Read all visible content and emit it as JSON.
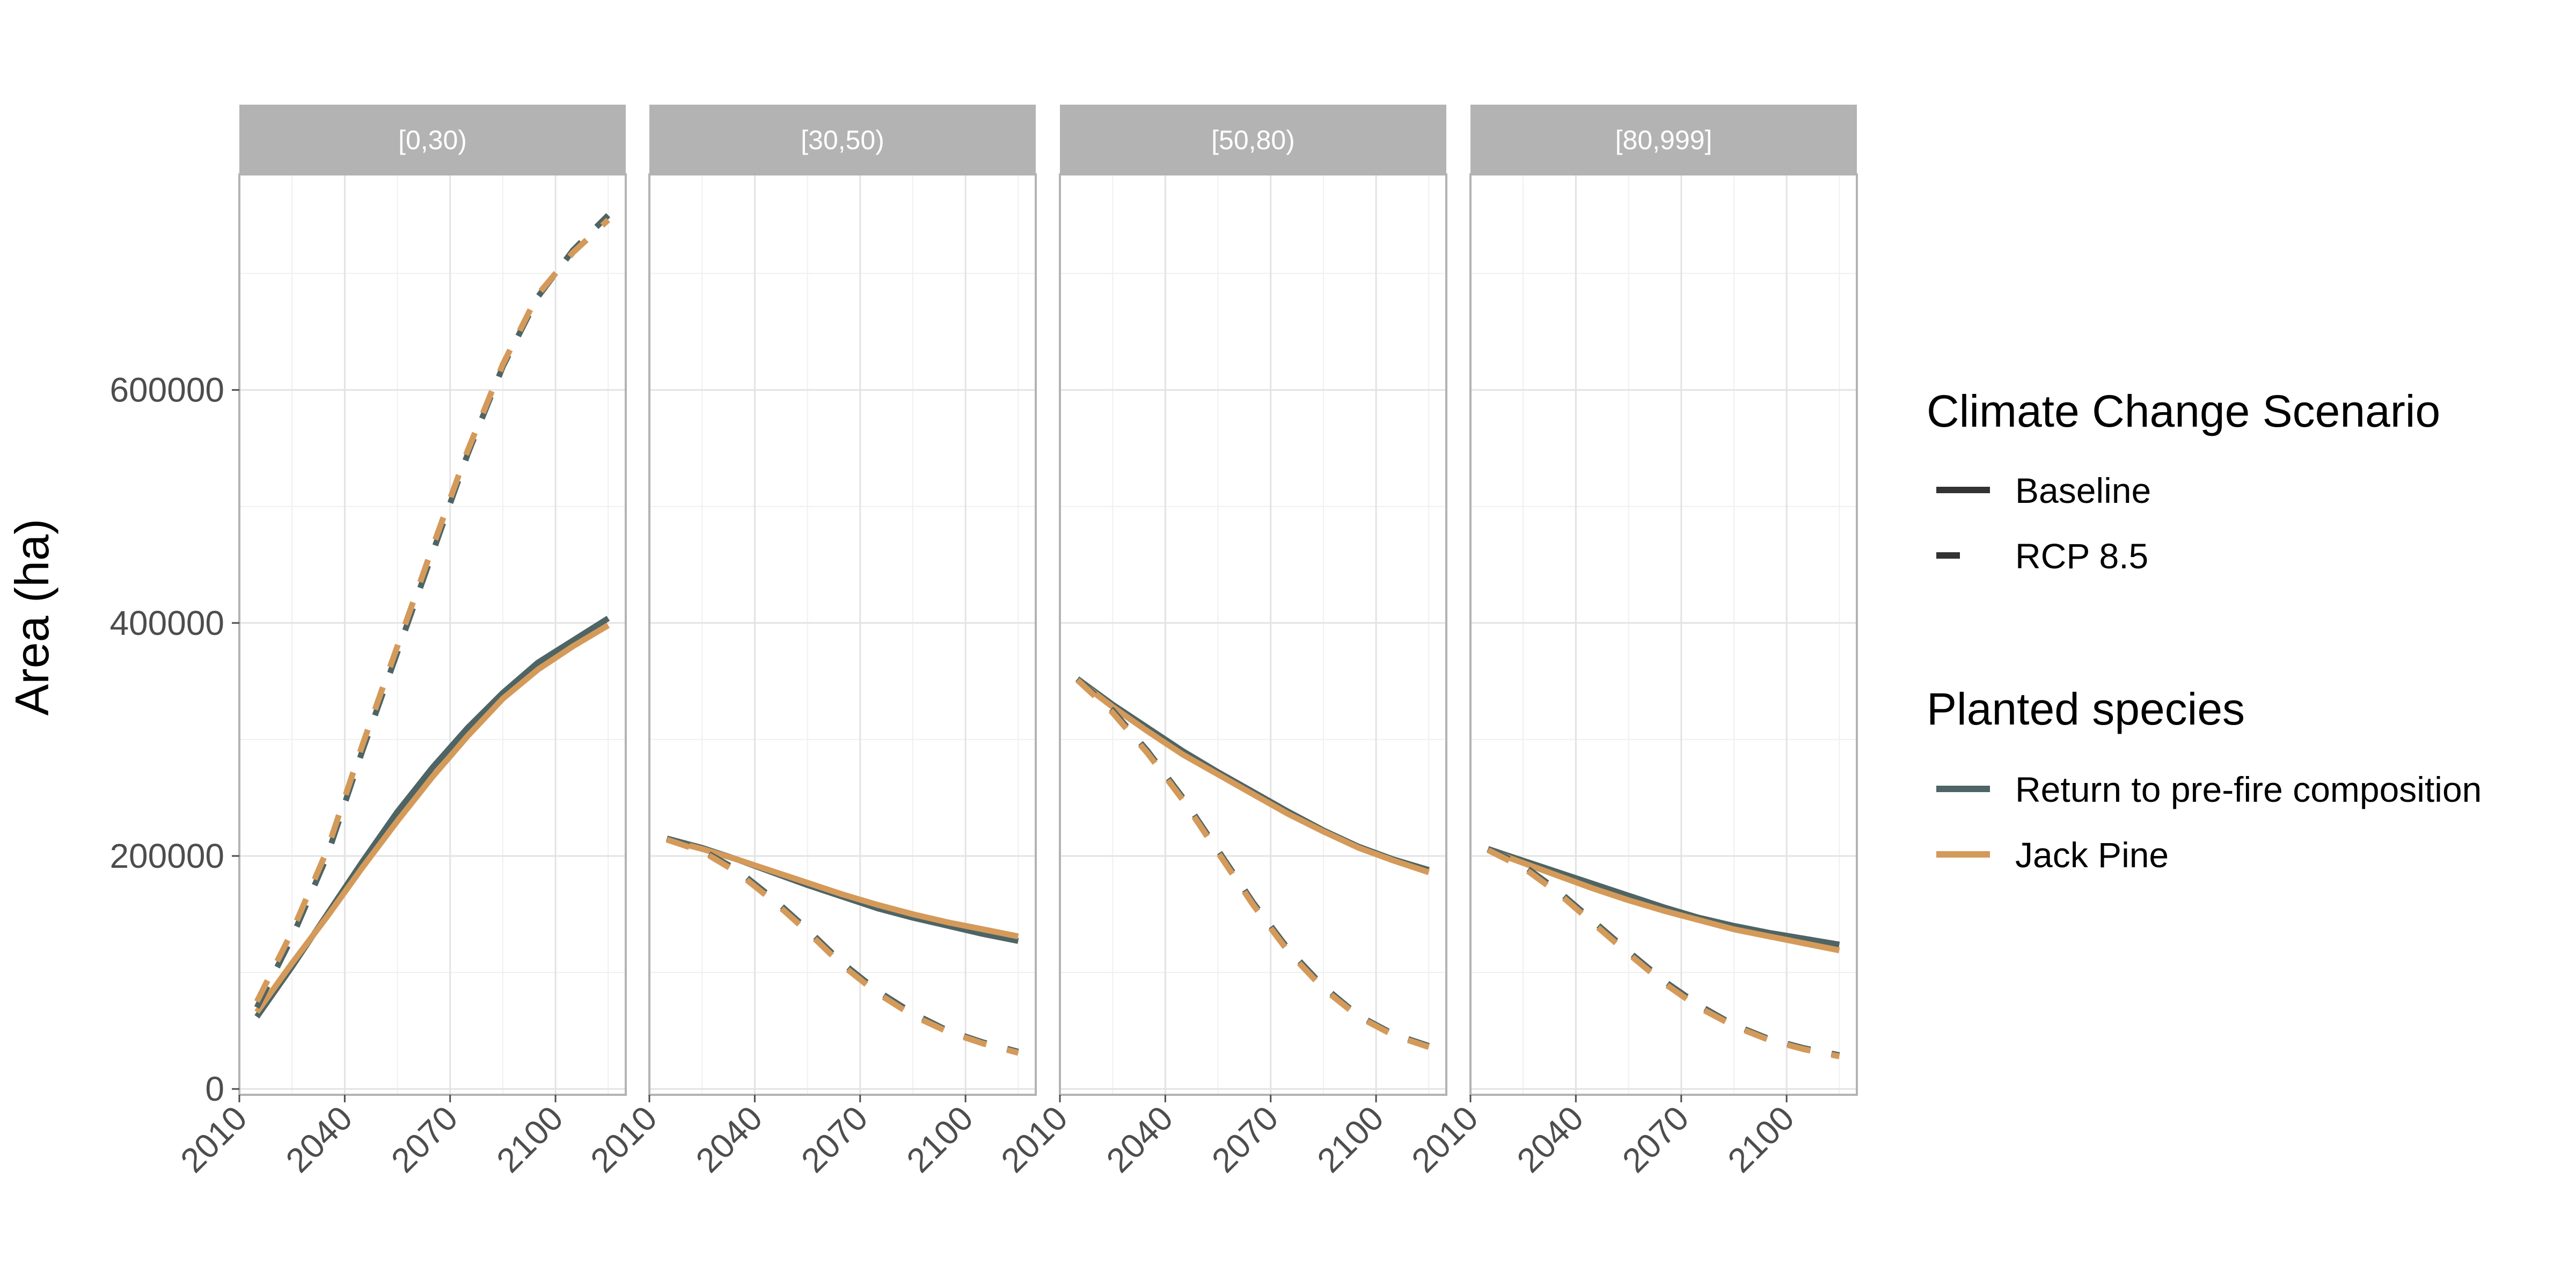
{
  "chart_data": {
    "type": "line",
    "ylabel": "Area (ha)",
    "xlabel": "",
    "xlim": [
      2010,
      2120
    ],
    "ylim": [
      -5000,
      785000
    ],
    "x_ticks": [
      "2010",
      "2040",
      "2070",
      "2100"
    ],
    "y_ticks": [
      "0",
      "200000",
      "400000",
      "600000"
    ],
    "grid": true,
    "colors": {
      "return_to_prefire": "#4e6465",
      "jack_pine": "#d49a5a",
      "strip": "#b3b3b3",
      "panel_border": "#b3b3b3",
      "grid": "#e3e3e3"
    },
    "legend": {
      "position": "right",
      "linetype_title": "Climate Change Scenario",
      "linetype_entries": [
        {
          "label": "Baseline",
          "dash": "solid"
        },
        {
          "label": "RCP 8.5",
          "dash": "dashed"
        }
      ],
      "color_title": "Planted species",
      "color_entries": [
        {
          "label": "Return to pre-fire composition",
          "color": "#4e6465"
        },
        {
          "label": "Jack Pine",
          "color": "#d49a5a"
        }
      ]
    },
    "panels": [
      {
        "label": "[0,30)",
        "series": [
          {
            "scenario": "Baseline",
            "species": "Return to pre-fire composition",
            "x": [
              2015,
              2025,
              2035,
              2045,
              2055,
              2065,
              2075,
              2085,
              2095,
              2105,
              2115
            ],
            "y": [
              62000,
              105000,
              150000,
              195000,
              238000,
              276000,
              310000,
              340000,
              366000,
              385000,
              404000
            ]
          },
          {
            "scenario": "Baseline",
            "species": "Jack Pine",
            "x": [
              2015,
              2025,
              2035,
              2045,
              2055,
              2065,
              2075,
              2085,
              2095,
              2105,
              2115
            ],
            "y": [
              66000,
              108000,
              148000,
              190000,
              230000,
              268000,
              303000,
              335000,
              360000,
              380000,
              398000
            ]
          },
          {
            "scenario": "RCP 8.5",
            "species": "Return to pre-fire composition",
            "x": [
              2015,
              2025,
              2035,
              2045,
              2055,
              2065,
              2075,
              2085,
              2095,
              2105,
              2115
            ],
            "y": [
              70000,
              130000,
              200000,
              290000,
              375000,
              460000,
              545000,
              620000,
              680000,
              720000,
              750000
            ]
          },
          {
            "scenario": "RCP 8.5",
            "species": "Jack Pine",
            "x": [
              2015,
              2025,
              2035,
              2045,
              2055,
              2065,
              2075,
              2085,
              2095,
              2105,
              2115
            ],
            "y": [
              75000,
              135000,
              205000,
              295000,
              380000,
              465000,
              548000,
              622000,
              682000,
              718000,
              746000
            ]
          }
        ]
      },
      {
        "label": "[30,50)",
        "series": [
          {
            "scenario": "Baseline",
            "species": "Return to pre-fire composition",
            "x": [
              2015,
              2025,
              2035,
              2045,
              2055,
              2065,
              2075,
              2085,
              2095,
              2105,
              2115
            ],
            "y": [
              215000,
              207000,
              197000,
              186000,
              175000,
              165000,
              155000,
              147000,
              140000,
              133000,
              127000
            ]
          },
          {
            "scenario": "Baseline",
            "species": "Jack Pine",
            "x": [
              2015,
              2025,
              2035,
              2045,
              2055,
              2065,
              2075,
              2085,
              2095,
              2105,
              2115
            ],
            "y": [
              214000,
              206000,
              197000,
              187000,
              177000,
              167000,
              158000,
              150000,
              143000,
              137000,
              131000
            ]
          },
          {
            "scenario": "RCP 8.5",
            "species": "Return to pre-fire composition",
            "x": [
              2015,
              2025,
              2035,
              2045,
              2055,
              2065,
              2075,
              2085,
              2095,
              2105,
              2115
            ],
            "y": [
              215000,
              205000,
              188000,
              164000,
              137000,
              108000,
              84000,
              65000,
              50000,
              40000,
              32000
            ]
          },
          {
            "scenario": "RCP 8.5",
            "species": "Jack Pine",
            "x": [
              2015,
              2025,
              2035,
              2045,
              2055,
              2065,
              2075,
              2085,
              2095,
              2105,
              2115
            ],
            "y": [
              214000,
              204000,
              186000,
              162000,
              135000,
              106000,
              82000,
              63000,
              49000,
              39000,
              31000
            ]
          }
        ]
      },
      {
        "label": "[50,80)",
        "series": [
          {
            "scenario": "Baseline",
            "species": "Return to pre-fire composition",
            "x": [
              2015,
              2025,
              2035,
              2045,
              2055,
              2065,
              2075,
              2085,
              2095,
              2105,
              2115
            ],
            "y": [
              352000,
              330000,
              310000,
              290000,
              272000,
              255000,
              238000,
              222000,
              208000,
              197000,
              188000
            ]
          },
          {
            "scenario": "Baseline",
            "species": "Jack Pine",
            "x": [
              2015,
              2025,
              2035,
              2045,
              2055,
              2065,
              2075,
              2085,
              2095,
              2105,
              2115
            ],
            "y": [
              351000,
              328000,
              307000,
              287000,
              270000,
              253000,
              236000,
              221000,
              207000,
              196000,
              186000
            ]
          },
          {
            "scenario": "RCP 8.5",
            "species": "Return to pre-fire composition",
            "x": [
              2015,
              2025,
              2035,
              2045,
              2055,
              2065,
              2075,
              2085,
              2095,
              2105,
              2115
            ],
            "y": [
              352000,
              325000,
              290000,
              250000,
              205000,
              160000,
              120000,
              88000,
              63000,
              47000,
              37000
            ]
          },
          {
            "scenario": "RCP 8.5",
            "species": "Jack Pine",
            "x": [
              2015,
              2025,
              2035,
              2045,
              2055,
              2065,
              2075,
              2085,
              2095,
              2105,
              2115
            ],
            "y": [
              351000,
              323000,
              288000,
              248000,
              203000,
              158000,
              118000,
              86000,
              62000,
              46000,
              36000
            ]
          }
        ]
      },
      {
        "label": "[80,999]",
        "series": [
          {
            "scenario": "Baseline",
            "species": "Return to pre-fire composition",
            "x": [
              2015,
              2025,
              2035,
              2045,
              2055,
              2065,
              2075,
              2085,
              2095,
              2105,
              2115
            ],
            "y": [
              206000,
              196000,
              186000,
              176000,
              166000,
              156000,
              147000,
              140000,
              134000,
              129000,
              124000
            ]
          },
          {
            "scenario": "Baseline",
            "species": "Jack Pine",
            "x": [
              2015,
              2025,
              2035,
              2045,
              2055,
              2065,
              2075,
              2085,
              2095,
              2105,
              2115
            ],
            "y": [
              205000,
              194000,
              183000,
              172000,
              162000,
              153000,
              145000,
              137000,
              131000,
              125000,
              119000
            ]
          },
          {
            "scenario": "RCP 8.5",
            "species": "Return to pre-fire composition",
            "x": [
              2015,
              2025,
              2035,
              2045,
              2055,
              2065,
              2075,
              2085,
              2095,
              2105,
              2115
            ],
            "y": [
              206000,
              192000,
              170000,
              144000,
              118000,
              93000,
              72000,
              55000,
              43000,
              35000,
              29000
            ]
          },
          {
            "scenario": "RCP 8.5",
            "species": "Jack Pine",
            "x": [
              2015,
              2025,
              2035,
              2045,
              2055,
              2065,
              2075,
              2085,
              2095,
              2105,
              2115
            ],
            "y": [
              205000,
              190000,
              168000,
              142000,
              116000,
              91000,
              70000,
              54000,
              42000,
              34000,
              28000
            ]
          }
        ]
      }
    ]
  }
}
